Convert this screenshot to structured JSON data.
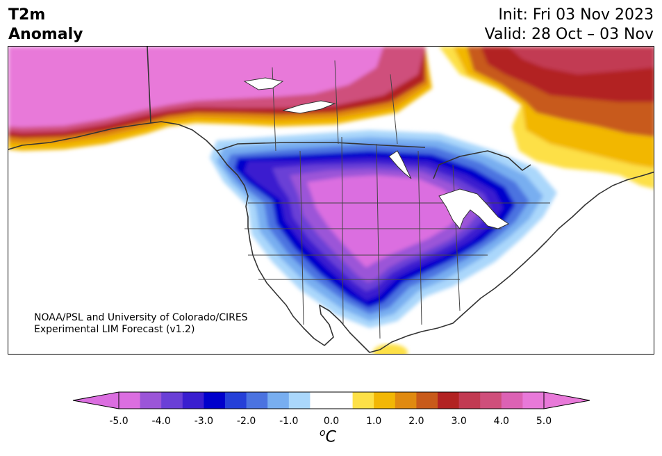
{
  "title": {
    "left_line1": "T2m",
    "left_line2": "Anomaly",
    "init": "Init: Fri 03 Nov 2023",
    "valid": "Valid: 28 Oct – 03 Nov"
  },
  "credit": {
    "line1": "NOAA/PSL and University of Colorado/CIRES",
    "line2": "Experimental LIM Forecast (v1.2)"
  },
  "colorbar": {
    "unit_base": "C",
    "unit_superscript": "o",
    "ticks": [
      "-5.0",
      "-4.0",
      "-3.0",
      "-2.0",
      "-1.0",
      "0.0",
      "1.0",
      "2.0",
      "3.0",
      "4.0",
      "5.0"
    ],
    "colors": [
      "#db6ee0",
      "#9b55d8",
      "#6a3fd6",
      "#3a1ecf",
      "#0000cc",
      "#2540d8",
      "#4b73e0",
      "#78aef0",
      "#aad7fb",
      "#ffffff",
      "#ffffff",
      "#fde047",
      "#f2b705",
      "#e08a10",
      "#c85a1a",
      "#b22222",
      "#c23a52",
      "#cf4f7b",
      "#dc62b4",
      "#e879d9"
    ],
    "extend_low_color": "#db6ee0",
    "extend_high_color": "#e879d9"
  }
}
